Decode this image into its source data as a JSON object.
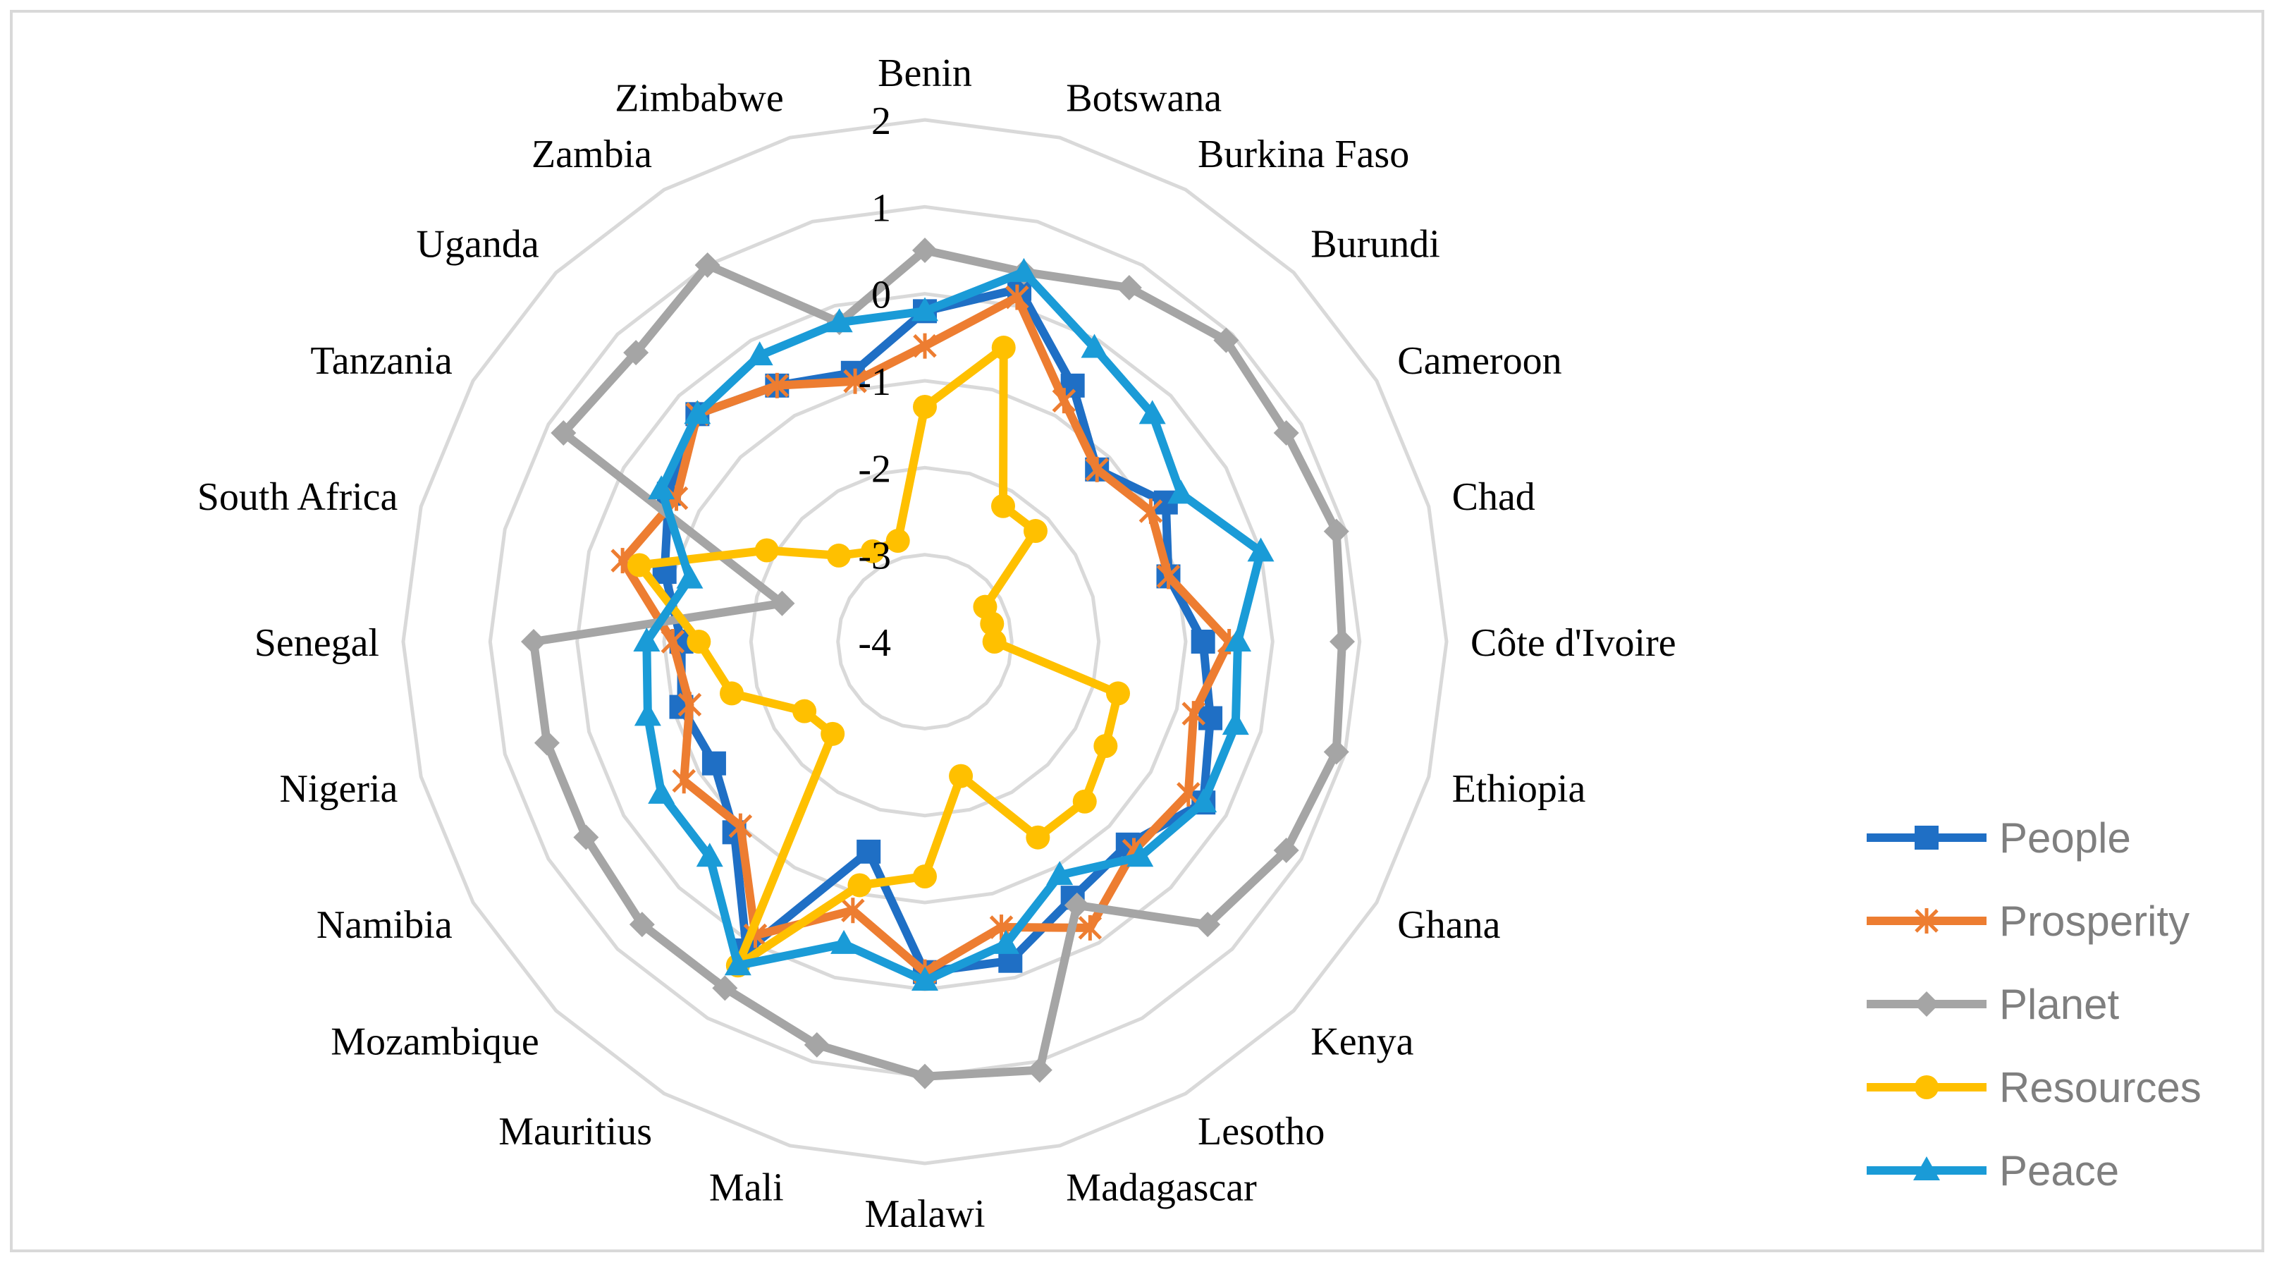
{
  "chart_data": {
    "type": "radar",
    "categories": [
      "Benin",
      "Botswana",
      "Burkina Faso",
      "Burundi",
      "Cameroon",
      "Chad",
      "Côte d'Ivoire",
      "Ethiopia",
      "Ghana",
      "Kenya",
      "Lesotho",
      "Madagascar",
      "Malawi",
      "Mali",
      "Mauritius",
      "Mozambique",
      "Namibia",
      "Nigeria",
      "Senegal",
      "South Africa",
      "Tanzania",
      "Uganda",
      "Zambia",
      "Zimbabwe"
    ],
    "axis": {
      "min": -4,
      "max": 2,
      "ticks": [
        "2",
        "1",
        "0",
        "-1",
        "-2",
        "-3",
        "-4"
      ],
      "tick_values": [
        2,
        1,
        0,
        -1,
        -2,
        -3,
        -4
      ]
    },
    "grid": true,
    "legend_position": "right",
    "series": [
      {
        "name": "People",
        "color": "#1f6fc5",
        "marker": "square",
        "values": [
          -0.2,
          0.2,
          -0.6,
          -1.2,
          -0.8,
          -1.1,
          -0.8,
          -0.6,
          -0.3,
          -0.7,
          -0.6,
          -0.2,
          -0.2,
          -1.5,
          0.1,
          -0.9,
          -1.2,
          -1.1,
          -1.2,
          -0.9,
          -0.6,
          -0.3,
          -0.6,
          -0.8
        ]
      },
      {
        "name": "Prosperity",
        "color": "#ed7d31",
        "marker": "star",
        "values": [
          -0.6,
          0.1,
          -0.8,
          -1.2,
          -1.0,
          -1.1,
          -0.5,
          -0.8,
          -0.5,
          -0.6,
          -0.2,
          -0.6,
          -0.2,
          -0.8,
          -0.1,
          -1.0,
          -0.8,
          -1.2,
          -1.1,
          -0.4,
          -0.7,
          -0.3,
          -0.6,
          -0.9
        ]
      },
      {
        "name": "Planet",
        "color": "#a5a5a5",
        "marker": "diamond",
        "values": [
          0.5,
          0.4,
          0.7,
          0.9,
          0.8,
          0.9,
          0.8,
          0.9,
          0.8,
          0.6,
          -0.5,
          1.1,
          1.0,
          0.8,
          0.6,
          0.6,
          0.5,
          0.5,
          0.5,
          -2.3,
          0.8,
          0.7,
          1.0,
          -0.2
        ]
      },
      {
        "name": "Resources",
        "color": "#ffc000",
        "marker": "circle",
        "values": [
          -1.3,
          -0.5,
          -2.2,
          -2.2,
          -3.2,
          -3.2,
          -3.2,
          -1.7,
          -1.6,
          -1.4,
          -1.4,
          -2.4,
          -1.3,
          -1.1,
          0.3,
          -2.5,
          -2.4,
          -1.7,
          -1.4,
          -0.6,
          -1.9,
          -2.6,
          -2.8,
          -2.8
        ]
      },
      {
        "name": "Peace",
        "color": "#1a9bd7",
        "marker": "triangle",
        "values": [
          -0.2,
          0.4,
          -0.1,
          -0.3,
          -0.6,
          0.0,
          -0.4,
          -0.3,
          -0.3,
          -0.5,
          -0.9,
          -0.4,
          -0.1,
          -0.4,
          0.3,
          -0.5,
          -0.5,
          -0.7,
          -0.8,
          -1.2,
          -0.5,
          -0.3,
          -0.2,
          -0.2
        ]
      }
    ]
  }
}
